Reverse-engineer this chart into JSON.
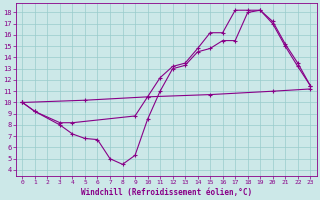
{
  "xlabel": "Windchill (Refroidissement éolien,°C)",
  "bg_color": "#cce8e8",
  "line_color": "#880088",
  "grid_color": "#99cccc",
  "xlim": [
    -0.5,
    23.5
  ],
  "ylim": [
    3.5,
    18.8
  ],
  "yticks": [
    4,
    5,
    6,
    7,
    8,
    9,
    10,
    11,
    12,
    13,
    14,
    15,
    16,
    17,
    18
  ],
  "xticks": [
    0,
    1,
    2,
    3,
    4,
    5,
    6,
    7,
    8,
    9,
    10,
    11,
    12,
    13,
    14,
    15,
    16,
    17,
    18,
    19,
    20,
    21,
    22,
    23
  ],
  "line1_x": [
    0,
    1,
    3,
    4,
    5,
    6,
    7,
    8,
    9,
    10,
    11,
    12,
    13,
    14,
    15,
    16,
    17,
    18,
    19,
    20,
    21,
    22,
    23
  ],
  "line1_y": [
    10.0,
    9.2,
    8.0,
    7.2,
    6.8,
    6.7,
    5.0,
    4.5,
    5.3,
    8.5,
    11.0,
    13.0,
    13.3,
    14.5,
    14.8,
    15.5,
    15.5,
    18.0,
    18.2,
    17.0,
    15.0,
    13.2,
    11.5
  ],
  "line2_x": [
    0,
    1,
    3,
    4,
    9,
    10,
    11,
    12,
    13,
    14,
    15,
    16,
    17,
    18,
    19,
    20,
    21,
    22,
    23
  ],
  "line2_y": [
    10.0,
    9.2,
    8.2,
    8.2,
    8.8,
    10.5,
    12.2,
    13.2,
    13.5,
    14.8,
    16.2,
    16.2,
    18.2,
    18.2,
    18.2,
    17.2,
    15.2,
    13.5,
    11.5
  ],
  "line3_x": [
    0,
    5,
    10,
    15,
    20,
    23
  ],
  "line3_y": [
    10.0,
    10.2,
    10.5,
    10.7,
    11.0,
    11.2
  ]
}
